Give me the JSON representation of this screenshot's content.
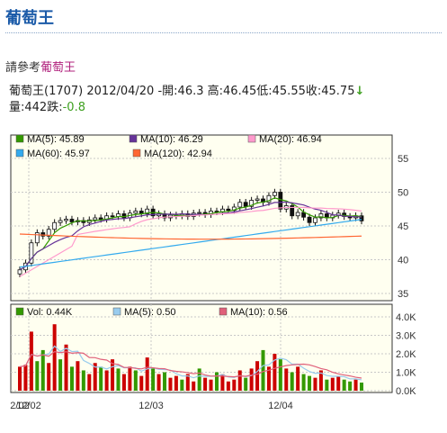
{
  "page": {
    "title": "葡萄王",
    "ref_prefix": "請參考",
    "ref_link": "葡萄王"
  },
  "quote": {
    "name_code": "葡萄王(1707)",
    "date": "2012/04/20",
    "open_label": "開:",
    "open": "46.3",
    "high_label": "高:",
    "high": "46.45",
    "low_label": "低:",
    "low": "45.55",
    "close_label": "收:",
    "close": "45.75",
    "trend_icon": "down-arrow",
    "volume_label": "量:",
    "volume": "442",
    "change_label": "跌:",
    "change": "-0.8"
  },
  "colors": {
    "up": "#cc0000",
    "down": "#339900",
    "panel_bg": "#fffff0",
    "ma5": "#339900",
    "ma10": "#663399",
    "ma20": "#ff99cc",
    "ma60": "#33aaee",
    "ma120": "#ff6633",
    "vma5": "#99ccee",
    "vma10": "#e0607a"
  },
  "chart_data": {
    "type": "line",
    "price_panel": {
      "legend": [
        {
          "name": "MA(5)",
          "value": "45.89",
          "color": "#339900"
        },
        {
          "name": "MA(10)",
          "value": "46.29",
          "color": "#663399"
        },
        {
          "name": "MA(20)",
          "value": "46.94",
          "color": "#ff99cc"
        },
        {
          "name": "MA(60)",
          "value": "45.97",
          "color": "#33aaee"
        },
        {
          "name": "MA(120)",
          "value": "42.94",
          "color": "#ff6633"
        }
      ],
      "y_ticks": [
        "55",
        "50",
        "45",
        "40",
        "35"
      ],
      "ylim": [
        35,
        55
      ],
      "candle_closes": [
        38.5,
        39.5,
        42.5,
        44,
        43.5,
        44.5,
        45.5,
        45.8,
        46,
        45.6,
        45.8,
        45.5,
        45.9,
        46.2,
        46,
        46.5,
        46.4,
        46.8,
        46.2,
        46.9,
        47.2,
        46.8,
        47.5,
        46.5,
        46.8,
        46.2,
        46.6,
        46.5,
        46.8,
        46.4,
        46.9,
        47,
        46.7,
        47.2,
        47.1,
        47.5,
        47.3,
        47.8,
        48.5,
        47.9,
        48.8,
        49,
        48.5,
        49.5,
        50,
        47.5,
        48,
        46.5,
        47,
        46.3,
        45.5,
        46.2,
        46.8,
        46.2,
        46.6,
        46.9,
        46.4,
        46.2,
        46.5,
        45.75
      ]
    },
    "volume_panel": {
      "legend": [
        {
          "name": "Vol",
          "value": "0.44K",
          "color": "#339900"
        },
        {
          "name": "MA(5)",
          "value": "0.50",
          "color": "#99ccee"
        },
        {
          "name": "MA(10)",
          "value": "0.56",
          "color": "#e0607a"
        }
      ],
      "y_ticks": [
        "4.0K",
        "3.0K",
        "2.0K",
        "1.0K",
        "0.0K"
      ],
      "ylim": [
        0,
        4.0
      ],
      "volumes": [
        1.3,
        1.4,
        3.2,
        1.6,
        2.2,
        1.5,
        3.6,
        1.7,
        2.5,
        1.3,
        1.6,
        1.1,
        0.9,
        1.5,
        1.3,
        1.1,
        1.7,
        1.2,
        0.9,
        1.3,
        1.1,
        0.8,
        1.8,
        1.2,
        0.9,
        1.0,
        0.7,
        0.8,
        0.6,
        0.9,
        0.5,
        1.2,
        0.7,
        0.6,
        1.0,
        0.9,
        0.5,
        0.6,
        1.1,
        0.7,
        1.2,
        1.6,
        2.2,
        1.3,
        2.0,
        1.7,
        1.2,
        1.0,
        1.3,
        0.9,
        0.8,
        0.7,
        1.1,
        0.6,
        0.7,
        0.8,
        0.6,
        0.5,
        0.6,
        0.44
      ],
      "up": [
        true,
        true,
        true,
        false,
        false,
        true,
        true,
        false,
        true,
        false,
        true,
        false,
        true,
        true,
        false,
        true,
        true,
        false,
        true,
        true,
        false,
        true,
        true,
        false,
        true,
        false,
        true,
        true,
        false,
        true,
        true,
        false,
        true,
        true,
        false,
        true,
        true,
        true,
        true,
        false,
        true,
        true,
        false,
        true,
        true,
        false,
        true,
        false,
        true,
        false,
        false,
        true,
        true,
        false,
        true,
        true,
        false,
        false,
        true,
        false
      ]
    },
    "x_labels": [
      "2/02",
      "12/02",
      "12/03",
      "12/04"
    ]
  }
}
